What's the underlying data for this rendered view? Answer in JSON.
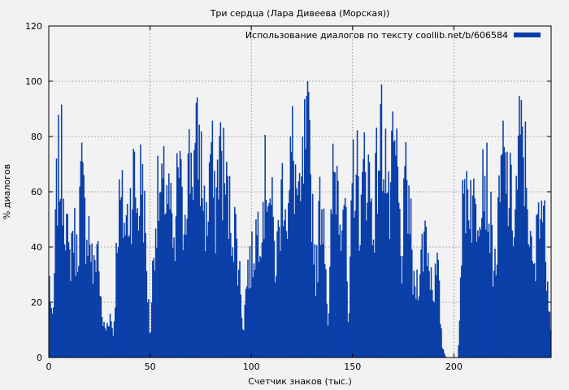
{
  "chart_data": {
    "type": "area",
    "title": "Три сердца (Лара Дивеева (Морская))",
    "xlabel": "Счетчик знаков (тыс.)",
    "ylabel": "% диалогов",
    "xlim": [
      0,
      248
    ],
    "ylim": [
      0,
      120
    ],
    "x_ticks": [
      0,
      50,
      100,
      150,
      200
    ],
    "y_ticks": [
      0,
      20,
      40,
      60,
      80,
      100,
      120
    ],
    "grid": true,
    "legend_position": "top-right",
    "series": [
      {
        "name": "Использование диалогов по тексту coollib.net/b/606584",
        "color": "#0a3fa8",
        "x": [
          0,
          2,
          4,
          6,
          8,
          10,
          12,
          14,
          16,
          18,
          20,
          22,
          24,
          26,
          28,
          30,
          32,
          34,
          36,
          38,
          40,
          42,
          44,
          46,
          48,
          50,
          52,
          54,
          56,
          58,
          60,
          62,
          64,
          66,
          68,
          70,
          72,
          74,
          76,
          78,
          80,
          82,
          84,
          86,
          88,
          90,
          92,
          94,
          96,
          98,
          100,
          102,
          104,
          106,
          108,
          110,
          112,
          114,
          116,
          118,
          120,
          122,
          124,
          126,
          128,
          130,
          132,
          134,
          136,
          138,
          140,
          142,
          144,
          146,
          148,
          150,
          152,
          154,
          156,
          158,
          160,
          162,
          164,
          166,
          168,
          170,
          172,
          174,
          176,
          178,
          180,
          182,
          184,
          186,
          188,
          190,
          192,
          194,
          196,
          198,
          200,
          202,
          204,
          206,
          208,
          210,
          212,
          214,
          216,
          218,
          220,
          222,
          224,
          226,
          228,
          230,
          232,
          234,
          236,
          238,
          240,
          242,
          244,
          246,
          248
        ],
        "y": [
          38,
          12,
          80,
          90,
          70,
          40,
          60,
          45,
          82,
          60,
          58,
          35,
          55,
          18,
          12,
          20,
          10,
          65,
          68,
          58,
          70,
          82,
          65,
          88,
          45,
          8,
          55,
          72,
          70,
          80,
          65,
          40,
          95,
          58,
          80,
          90,
          88,
          97,
          78,
          55,
          99,
          60,
          95,
          85,
          72,
          62,
          58,
          40,
          12,
          40,
          42,
          55,
          62,
          72,
          86,
          66,
          40,
          62,
          85,
          60,
          95,
          78,
          62,
          92,
          98,
          70,
          35,
          72,
          66,
          8,
          80,
          85,
          68,
          80,
          6,
          86,
          84,
          60,
          90,
          82,
          58,
          85,
          100,
          98,
          60,
          90,
          85,
          40,
          75,
          70,
          30,
          35,
          45,
          60,
          40,
          32,
          40,
          6,
          0,
          0,
          0,
          0,
          60,
          80,
          75,
          65,
          70,
          92,
          80,
          60,
          38,
          60,
          90,
          80,
          70,
          60,
          95,
          94,
          80,
          45,
          35,
          80,
          65,
          40,
          14
        ]
      }
    ]
  }
}
